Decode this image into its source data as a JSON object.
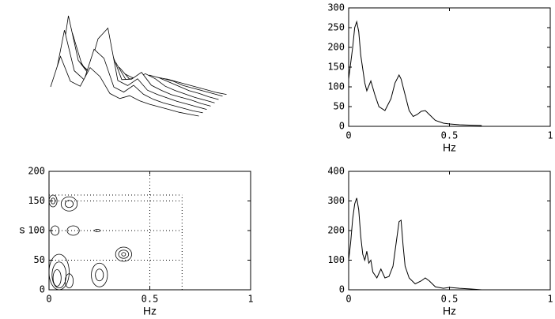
{
  "chart_data": [
    {
      "type": "waterfall",
      "traces": [
        [
          20,
          60,
          30,
          25,
          50,
          40,
          20,
          15,
          20,
          15,
          12,
          10,
          8,
          6,
          5,
          4
        ],
        [
          25,
          90,
          40,
          30,
          70,
          60,
          25,
          20,
          30,
          20,
          15,
          12,
          10,
          8,
          6,
          5
        ],
        [
          20,
          105,
          50,
          35,
          80,
          95,
          30,
          25,
          35,
          22,
          18,
          15,
          12,
          10,
          8,
          6
        ],
        [
          18,
          80,
          40,
          30,
          75,
          60,
          28,
          30,
          40,
          25,
          20,
          16,
          14,
          12,
          9,
          7
        ],
        [
          15,
          50,
          30,
          25,
          55,
          45,
          25,
          28,
          35,
          30,
          22,
          18,
          15,
          12,
          10,
          8
        ],
        [
          12,
          35,
          25,
          20,
          40,
          35,
          22,
          25,
          30,
          28,
          24,
          20,
          16,
          14,
          11,
          9
        ],
        [
          10,
          25,
          20,
          18,
          30,
          25,
          20,
          22,
          25,
          24,
          22,
          18,
          16,
          14,
          12,
          10
        ],
        [
          8,
          18,
          16,
          15,
          20,
          18,
          16,
          18,
          20,
          20,
          18,
          16,
          14,
          12,
          10,
          9
        ]
      ]
    },
    {
      "type": "line",
      "xlabel": "Hz",
      "xlim": [
        0,
        1
      ],
      "xticks": [
        0,
        0.5,
        1
      ],
      "ylim": [
        0,
        300
      ],
      "yticks": [
        0,
        50,
        100,
        150,
        200,
        250,
        300
      ],
      "color": "#000000",
      "x": [
        0,
        0.02,
        0.03,
        0.04,
        0.05,
        0.06,
        0.08,
        0.09,
        0.11,
        0.13,
        0.15,
        0.18,
        0.21,
        0.23,
        0.25,
        0.26,
        0.28,
        0.3,
        0.32,
        0.34,
        0.36,
        0.38,
        0.4,
        0.43,
        0.47,
        0.5,
        0.55,
        0.6,
        0.66
      ],
      "values": [
        120,
        200,
        250,
        265,
        240,
        180,
        110,
        90,
        115,
        80,
        50,
        40,
        70,
        110,
        130,
        120,
        80,
        40,
        25,
        30,
        38,
        40,
        30,
        15,
        8,
        6,
        4,
        3,
        2
      ]
    },
    {
      "type": "contour",
      "xlabel": "Hz",
      "ylabel": "s",
      "xlim": [
        0,
        1
      ],
      "xticks": [
        0,
        0.5,
        1
      ],
      "ylim": [
        0,
        200
      ],
      "yticks": [
        0,
        50,
        100,
        150,
        200
      ],
      "grid": true,
      "region_xlim": [
        0,
        0.66
      ],
      "region_ylim": [
        0,
        160
      ],
      "contours": [
        {
          "x": 0.02,
          "y": 150,
          "rx": 0.02,
          "ry": 10
        },
        {
          "x": 0.02,
          "y": 150,
          "rx": 0.01,
          "ry": 5
        },
        {
          "x": 0.1,
          "y": 145,
          "rx": 0.04,
          "ry": 12
        },
        {
          "x": 0.1,
          "y": 145,
          "rx": 0.02,
          "ry": 6
        },
        {
          "x": 0.03,
          "y": 100,
          "rx": 0.02,
          "ry": 8
        },
        {
          "x": 0.12,
          "y": 100,
          "rx": 0.03,
          "ry": 8
        },
        {
          "x": 0.24,
          "y": 100,
          "rx": 0.015,
          "ry": 2
        },
        {
          "x": 0.37,
          "y": 60,
          "rx": 0.04,
          "ry": 12
        },
        {
          "x": 0.37,
          "y": 60,
          "rx": 0.025,
          "ry": 7
        },
        {
          "x": 0.37,
          "y": 60,
          "rx": 0.01,
          "ry": 3
        },
        {
          "x": 0.05,
          "y": 30,
          "rx": 0.05,
          "ry": 30
        },
        {
          "x": 0.05,
          "y": 25,
          "rx": 0.035,
          "ry": 22
        },
        {
          "x": 0.04,
          "y": 20,
          "rx": 0.02,
          "ry": 14
        },
        {
          "x": 0.1,
          "y": 15,
          "rx": 0.02,
          "ry": 12
        },
        {
          "x": 0.25,
          "y": 25,
          "rx": 0.04,
          "ry": 20
        },
        {
          "x": 0.25,
          "y": 25,
          "rx": 0.02,
          "ry": 10
        }
      ]
    },
    {
      "type": "line",
      "xlabel": "Hz",
      "xlim": [
        0,
        1
      ],
      "xticks": [
        0,
        0.5,
        1
      ],
      "ylim": [
        0,
        400
      ],
      "yticks": [
        0,
        100,
        200,
        300,
        400
      ],
      "color": "#000000",
      "x": [
        0,
        0.01,
        0.02,
        0.03,
        0.04,
        0.05,
        0.06,
        0.07,
        0.08,
        0.09,
        0.1,
        0.11,
        0.12,
        0.14,
        0.16,
        0.18,
        0.2,
        0.22,
        0.24,
        0.25,
        0.26,
        0.27,
        0.28,
        0.3,
        0.33,
        0.36,
        0.38,
        0.4,
        0.43,
        0.47,
        0.5,
        0.55,
        0.6,
        0.66
      ],
      "values": [
        100,
        160,
        240,
        290,
        310,
        270,
        180,
        120,
        100,
        130,
        90,
        100,
        60,
        40,
        70,
        40,
        45,
        80,
        180,
        230,
        235,
        150,
        80,
        40,
        20,
        30,
        40,
        30,
        10,
        5,
        8,
        5,
        3,
        0
      ]
    }
  ]
}
